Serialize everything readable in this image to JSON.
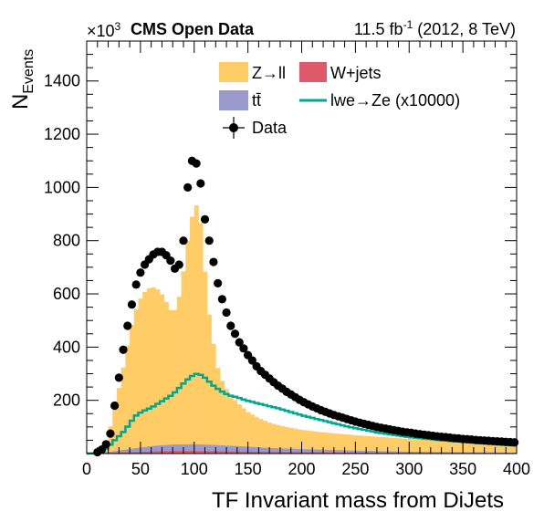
{
  "header": {
    "exponent_base": "×10",
    "exponent_power": "3",
    "experiment": "CMS Open Data",
    "lumi_value": "11.5 fb",
    "lumi_power": "-1",
    "lumi_rest": " (2012, 8 TeV)"
  },
  "axes": {
    "ylabel_main": "N",
    "ylabel_sub": "Events",
    "xlabel": "TF Invariant mass from DiJets"
  },
  "legend": {
    "zll": "Z→ll",
    "wjets": "W+jets",
    "ttbar": "tt̄",
    "signal": "lwe→Ze (x10000)",
    "data": "Data"
  },
  "chart_data": {
    "type": "histogram",
    "x_range": [
      0,
      400
    ],
    "y_range": [
      0,
      1550
    ],
    "y_scale_note": "×10^3",
    "x_ticks": [
      0,
      50,
      100,
      150,
      200,
      250,
      300,
      350,
      400
    ],
    "y_ticks": [
      200,
      400,
      600,
      800,
      1000,
      1200,
      1400
    ],
    "bin_width": 4,
    "zll": {
      "x": [
        0,
        8,
        12,
        16,
        20,
        24,
        28,
        32,
        36,
        40,
        44,
        48,
        52,
        56,
        60,
        64,
        68,
        72,
        76,
        80,
        84,
        88,
        92,
        96,
        100,
        104,
        108,
        112,
        116,
        120,
        124,
        128,
        132,
        136,
        140,
        144,
        150,
        160,
        170,
        180,
        200,
        220,
        250,
        280,
        300,
        340,
        400
      ],
      "y": [
        0,
        3,
        8,
        25,
        60,
        130,
        200,
        270,
        350,
        430,
        500,
        545,
        575,
        590,
        598,
        595,
        580,
        555,
        520,
        490,
        520,
        590,
        710,
        820,
        890,
        905,
        760,
        540,
        440,
        320,
        260,
        225,
        200,
        180,
        165,
        150,
        130,
        110,
        95,
        85,
        72,
        65,
        58,
        52,
        48,
        40,
        30
      ]
    },
    "ttbar": {
      "x": [
        0,
        20,
        40,
        60,
        80,
        100,
        120,
        140,
        170,
        200,
        250,
        300,
        400
      ],
      "y": [
        0,
        4,
        12,
        20,
        24,
        25,
        23,
        20,
        15,
        12,
        8,
        5,
        2
      ]
    },
    "wjets": {
      "x": [
        0,
        20,
        40,
        60,
        80,
        100,
        120,
        140,
        170,
        200,
        250,
        300,
        400
      ],
      "y": [
        0,
        2,
        5,
        8,
        10,
        10,
        9,
        8,
        6,
        5,
        3,
        2,
        1
      ]
    },
    "signal": {
      "x": [
        0,
        12,
        16,
        20,
        24,
        28,
        32,
        36,
        40,
        44,
        48,
        52,
        56,
        60,
        64,
        68,
        72,
        76,
        80,
        84,
        88,
        92,
        96,
        100,
        104,
        108,
        112,
        116,
        120,
        124,
        128,
        132,
        136,
        140,
        144,
        150,
        160,
        170,
        180,
        190,
        200,
        210,
        220,
        230,
        240,
        250,
        260,
        270,
        280,
        290,
        300,
        310,
        320,
        330,
        340,
        350,
        360,
        370,
        380,
        390,
        400
      ],
      "y": [
        0,
        2,
        10,
        25,
        42,
        58,
        72,
        90,
        112,
        135,
        150,
        158,
        166,
        172,
        182,
        192,
        202,
        212,
        222,
        238,
        255,
        272,
        285,
        298,
        300,
        292,
        278,
        262,
        248,
        238,
        228,
        220,
        215,
        212,
        206,
        198,
        188,
        178,
        168,
        156,
        144,
        134,
        124,
        114,
        104,
        95,
        88,
        80,
        73,
        68,
        62,
        58,
        54,
        50,
        47,
        44,
        41,
        38,
        35,
        32,
        30
      ]
    },
    "data": {
      "x": [
        10,
        14,
        18,
        22,
        26,
        30,
        34,
        38,
        42,
        46,
        50,
        54,
        58,
        62,
        66,
        70,
        74,
        78,
        82,
        86,
        90,
        94,
        98,
        102,
        106,
        110,
        114,
        118,
        122,
        126,
        130,
        134,
        138,
        142,
        146,
        150,
        154,
        158,
        162,
        166,
        170,
        174,
        178,
        182,
        186,
        190,
        194,
        198,
        202,
        206,
        210,
        214,
        218,
        222,
        226,
        230,
        234,
        238,
        242,
        246,
        250,
        254,
        258,
        262,
        266,
        270,
        274,
        278,
        282,
        286,
        290,
        294,
        298,
        302,
        306,
        310,
        314,
        318,
        322,
        326,
        330,
        334,
        338,
        342,
        346,
        350,
        354,
        358,
        362,
        366,
        370,
        374,
        378,
        382,
        386,
        390,
        394,
        398
      ],
      "y": [
        5,
        15,
        35,
        75,
        180,
        285,
        390,
        480,
        560,
        635,
        680,
        710,
        730,
        748,
        758,
        758,
        745,
        725,
        695,
        710,
        800,
        1000,
        1100,
        1090,
        1015,
        880,
        800,
        720,
        640,
        580,
        530,
        480,
        450,
        418,
        395,
        370,
        350,
        328,
        310,
        296,
        282,
        268,
        255,
        244,
        232,
        222,
        212,
        202,
        193,
        185,
        177,
        170,
        163,
        157,
        151,
        145,
        140,
        135,
        130,
        125,
        120,
        116,
        112,
        108,
        104,
        100,
        97,
        94,
        91,
        88,
        85,
        82,
        80,
        78,
        75,
        73,
        71,
        69,
        67,
        65,
        63,
        62,
        60,
        58,
        57,
        55,
        54,
        53,
        51,
        50,
        49,
        48,
        47,
        46,
        45,
        44,
        43,
        42
      ]
    },
    "colors": {
      "zll": "#ffcc66",
      "ttbar": "#9999cc",
      "wjets": "#de5a6a",
      "signal": "#00a88f",
      "data": "#000000"
    }
  }
}
